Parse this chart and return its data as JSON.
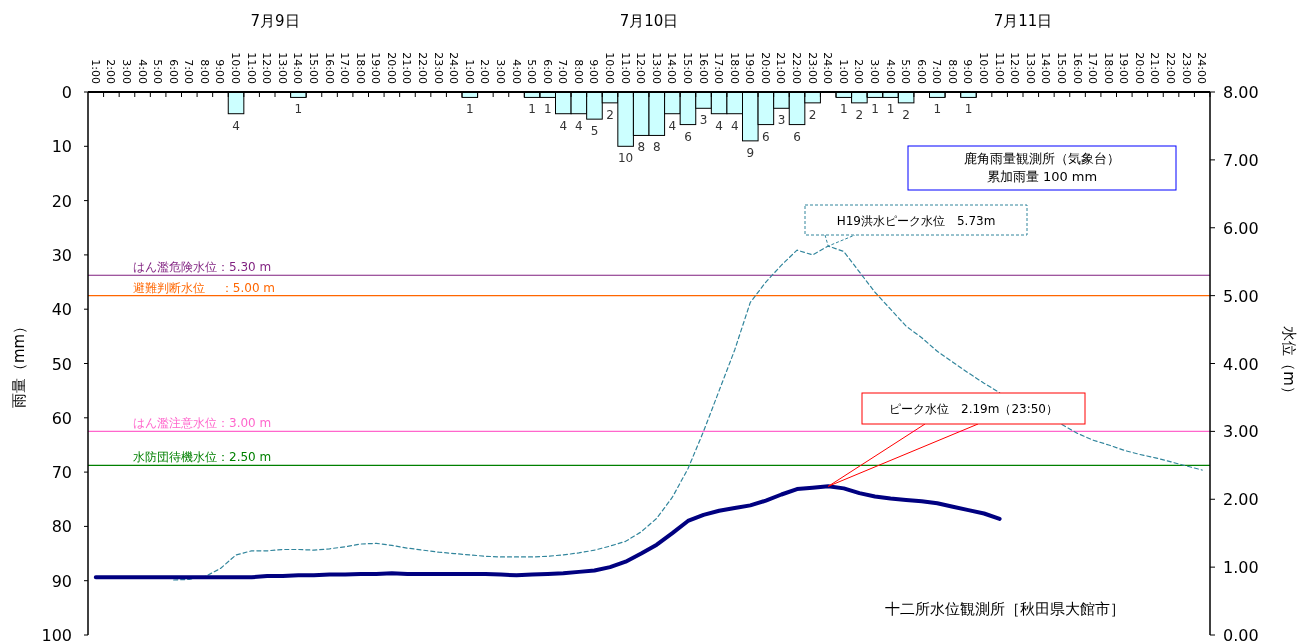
{
  "chart_data": {
    "type": "bar",
    "ylabel": "雨量（mm）",
    "y2label": "水位（m）",
    "categories": [
      "1:00",
      "2:00",
      "3:00",
      "4:00",
      "5:00",
      "6:00",
      "7:00",
      "8:00",
      "9:00",
      "10:00",
      "11:00",
      "12:00",
      "13:00",
      "14:00",
      "15:00",
      "16:00",
      "17:00",
      "18:00",
      "19:00",
      "20:00",
      "21:00",
      "22:00",
      "23:00",
      "24:00",
      "1:00",
      "2:00",
      "3:00",
      "4:00",
      "5:00",
      "6:00",
      "7:00",
      "8:00",
      "9:00",
      "10:00",
      "11:00",
      "12:00",
      "13:00",
      "14:00",
      "15:00",
      "16:00",
      "17:00",
      "18:00",
      "19:00",
      "20:00",
      "21:00",
      "22:00",
      "23:00",
      "24:00",
      "1:00",
      "2:00",
      "3:00",
      "4:00",
      "5:00",
      "6:00",
      "7:00",
      "8:00",
      "9:00",
      "10:00",
      "11:00",
      "12:00",
      "13:00",
      "14:00",
      "15:00",
      "16:00",
      "17:00",
      "18:00",
      "19:00",
      "20:00",
      "21:00",
      "22:00",
      "23:00",
      "24:00"
    ],
    "ylim": [
      100,
      0
    ],
    "yticks": [
      0,
      10,
      20,
      30,
      40,
      50,
      60,
      70,
      80,
      90,
      100
    ],
    "y2lim": [
      0,
      8
    ],
    "y2ticks": [
      {
        "value": 0,
        "label": "0.00"
      },
      {
        "value": 1,
        "label": "1.00"
      },
      {
        "value": 2,
        "label": "2.00"
      },
      {
        "value": 3,
        "label": "3.00"
      },
      {
        "value": 4,
        "label": "4.00"
      },
      {
        "value": 5,
        "label": "5.00"
      },
      {
        "value": 6,
        "label": "6.00"
      },
      {
        "value": 7,
        "label": "7.00"
      },
      {
        "value": 8,
        "label": "8.00"
      }
    ],
    "series": [
      {
        "color": "#ccffff",
        "value_labels": [
          null,
          null,
          null,
          null,
          null,
          null,
          null,
          null,
          null,
          "4",
          null,
          null,
          null,
          "1",
          null,
          null,
          null,
          null,
          null,
          null,
          null,
          null,
          null,
          null,
          "1",
          null,
          null,
          null,
          "1",
          "1",
          "4",
          "4",
          "5",
          "2",
          "10",
          "8",
          "8",
          "4",
          "6",
          "3",
          "4",
          "4",
          "9",
          "6",
          "3",
          "6",
          "2",
          null,
          "1",
          "2",
          "1",
          "1",
          "2",
          null,
          "1",
          null,
          "1",
          null,
          null,
          null,
          null,
          null,
          null,
          null,
          null,
          null,
          null,
          null,
          null,
          null,
          null,
          null
        ],
        "values": [
          null,
          null,
          null,
          null,
          null,
          null,
          null,
          null,
          null,
          4,
          null,
          null,
          null,
          1,
          null,
          null,
          null,
          null,
          null,
          null,
          null,
          null,
          null,
          null,
          1,
          null,
          null,
          null,
          1,
          1,
          4,
          4,
          5,
          2,
          10,
          8,
          8,
          4,
          6,
          3,
          4,
          4,
          9,
          6,
          3,
          6,
          2,
          null,
          1,
          2,
          1,
          1,
          2,
          null,
          1,
          null,
          1,
          null,
          null,
          null,
          null,
          null,
          null,
          null,
          null,
          null,
          null,
          null,
          null,
          null,
          null,
          null
        ]
      },
      {
        "type": "line",
        "axis": "y2",
        "color": "#31859c",
        "line_style": "dashed",
        "values": [
          null,
          null,
          null,
          null,
          null,
          0.81,
          0.82,
          0.86,
          0.98,
          1.18,
          1.24,
          1.24,
          1.26,
          1.26,
          1.25,
          1.27,
          1.3,
          1.34,
          1.35,
          1.32,
          1.28,
          1.25,
          1.22,
          1.2,
          1.18,
          1.16,
          1.15,
          1.15,
          1.15,
          1.16,
          1.18,
          1.21,
          1.25,
          1.31,
          1.38,
          1.52,
          1.72,
          2.03,
          2.45,
          3.0,
          3.6,
          4.2,
          4.9,
          5.2,
          5.45,
          5.67,
          5.6,
          5.73,
          5.65,
          5.35,
          5.05,
          4.8,
          4.55,
          4.38,
          4.18,
          4.02,
          3.86,
          3.71,
          3.57,
          null,
          null,
          null,
          3.1,
          2.97,
          2.87,
          2.8,
          2.72,
          2.66,
          2.61,
          2.55,
          2.49,
          2.43
        ]
      },
      {
        "type": "line",
        "axis": "y2",
        "color": "#000080",
        "line_style": "solid",
        "values": [
          0.85,
          0.85,
          0.85,
          0.85,
          0.85,
          0.85,
          0.85,
          0.85,
          0.85,
          0.85,
          0.85,
          0.87,
          0.87,
          0.88,
          0.88,
          0.89,
          0.89,
          0.9,
          0.9,
          0.91,
          0.9,
          0.9,
          0.9,
          0.9,
          0.9,
          0.9,
          0.89,
          0.88,
          0.89,
          0.9,
          0.91,
          0.93,
          0.95,
          1.0,
          1.08,
          1.2,
          1.33,
          1.5,
          1.68,
          1.77,
          1.83,
          1.87,
          1.91,
          1.98,
          2.07,
          2.15,
          2.17,
          2.19,
          2.16,
          2.09,
          2.04,
          2.01,
          1.99,
          1.97,
          1.94,
          1.89,
          1.84,
          1.79,
          1.71,
          null,
          null,
          null,
          null,
          null,
          null,
          null,
          null,
          null,
          null,
          null,
          null,
          null
        ]
      }
    ],
    "ref_lines": [
      {
        "axis": "y2",
        "value": 5.3,
        "label": "はん濫危険水位：5.30 m",
        "color": "#7f1f7f"
      },
      {
        "axis": "y2",
        "value": 5.0,
        "label": "避難判断水位　 ：5.00 m",
        "color": "#ff6600"
      },
      {
        "axis": "y2",
        "value": 3.0,
        "label": "はん濫注意水位：3.00 m",
        "color": "#ff66cc"
      },
      {
        "axis": "y2",
        "value": 2.5,
        "label": "水防団待機水位：2.50 m",
        "color": "#008000"
      }
    ],
    "annotations": [
      "7月9日",
      "7月10日",
      "7月11日",
      "鹿角雨量観測所（気象台）",
      "累加雨量 100 mm",
      "H19洪水ピーク水位　5.73m",
      "ピーク水位　2.19m（23:50）",
      "十二所水位観測所［秋田県大館市］"
    ]
  }
}
